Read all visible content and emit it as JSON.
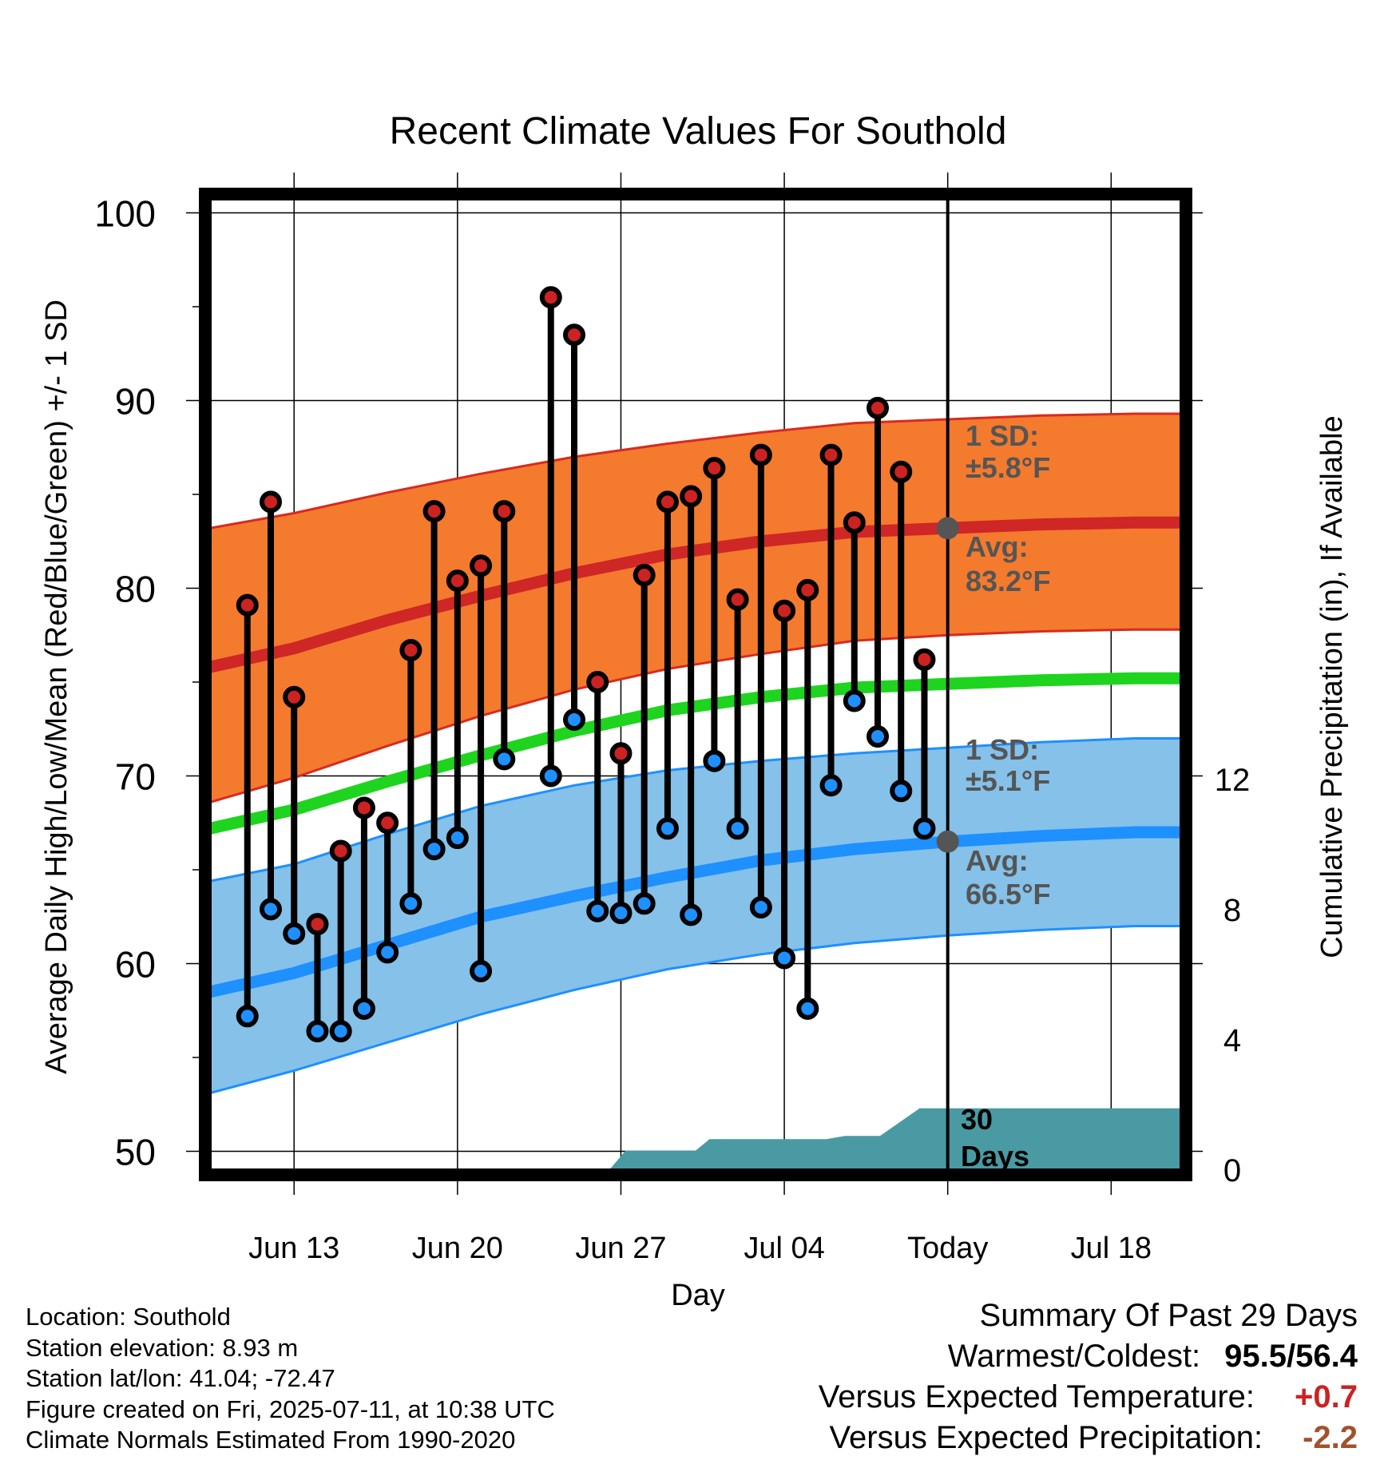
{
  "chart_data": {
    "type": "line",
    "title": "Recent Climate Values For Southold",
    "xlabel": "Day",
    "ylabel": "Average Daily High/Low/Mean (Red/Blue/Green) +/- 1 SD",
    "y2label": "Cumulative Precipitation (in), If Available",
    "ylim": [
      49,
      101
    ],
    "y2lim": [
      0,
      30
    ],
    "xlim": [
      -31.6,
      10
    ],
    "x_ticks": [
      {
        "x": -28,
        "label": "Jun 13"
      },
      {
        "x": -21,
        "label": "Jun 20"
      },
      {
        "x": -14,
        "label": "Jun 27"
      },
      {
        "x": -7,
        "label": "Jul 04"
      },
      {
        "x": 0,
        "label": "Today"
      },
      {
        "x": 7,
        "label": "Jul 18"
      }
    ],
    "y_ticks": [
      50,
      60,
      70,
      80,
      90,
      100
    ],
    "y2_ticks": [
      0,
      4,
      8,
      12
    ],
    "today_x": 0,
    "grid": true,
    "normals": {
      "x": [
        -31.6,
        -28,
        -24,
        -20,
        -16,
        -12,
        -8,
        -4,
        0,
        4,
        8,
        10
      ],
      "high_upper": [
        83.2,
        84.0,
        85.1,
        86.1,
        87.0,
        87.7,
        88.3,
        88.8,
        89.0,
        89.2,
        89.3,
        89.3
      ],
      "high_avg": [
        75.8,
        76.8,
        78.3,
        79.6,
        80.8,
        81.8,
        82.5,
        83.0,
        83.2,
        83.4,
        83.5,
        83.5
      ],
      "high_lower": [
        68.6,
        69.9,
        71.6,
        73.2,
        74.6,
        75.7,
        76.5,
        77.2,
        77.5,
        77.7,
        77.8,
        77.8
      ],
      "mean_avg": [
        67.2,
        68.2,
        69.7,
        71.1,
        72.4,
        73.5,
        74.2,
        74.7,
        74.9,
        75.1,
        75.2,
        75.2
      ],
      "low_upper": [
        64.4,
        65.3,
        66.9,
        68.4,
        69.5,
        70.3,
        70.8,
        71.2,
        71.5,
        71.8,
        72.0,
        72.0
      ],
      "low_avg": [
        58.5,
        59.5,
        61.0,
        62.5,
        63.6,
        64.6,
        65.5,
        66.1,
        66.5,
        66.8,
        67.0,
        67.0
      ],
      "low_lower": [
        53.1,
        54.3,
        55.8,
        57.3,
        58.6,
        59.7,
        60.5,
        61.1,
        61.5,
        61.8,
        62.0,
        62.0
      ]
    },
    "series": [
      {
        "name": "High",
        "color": "#cc2222",
        "x": [
          -30,
          -29,
          -28,
          -27,
          -26,
          -25,
          -24,
          -23,
          -22,
          -21,
          -20,
          -19,
          -17,
          -16,
          -15,
          -14,
          -13,
          -12,
          -11,
          -10,
          -9,
          -8,
          -7,
          -6,
          -5,
          -4,
          -3,
          -2,
          -1
        ],
        "values": [
          79.1,
          84.6,
          74.2,
          62.1,
          66.0,
          68.3,
          67.5,
          76.7,
          84.1,
          80.4,
          81.2,
          84.1,
          95.5,
          93.5,
          75.0,
          71.2,
          80.7,
          84.6,
          84.9,
          86.4,
          79.4,
          87.1,
          78.8,
          79.9,
          87.1,
          83.5,
          89.6,
          86.2,
          76.2
        ]
      },
      {
        "name": "Low",
        "color": "#1e90ff",
        "x": [
          -30,
          -29,
          -28,
          -27,
          -26,
          -25,
          -24,
          -23,
          -22,
          -21,
          -20,
          -19,
          -17,
          -16,
          -15,
          -14,
          -13,
          -12,
          -11,
          -10,
          -9,
          -8,
          -7,
          -6,
          -5,
          -4,
          -3,
          -2,
          -1
        ],
        "values": [
          57.2,
          62.9,
          61.6,
          56.4,
          56.4,
          57.6,
          60.6,
          63.2,
          66.1,
          66.7,
          59.6,
          70.9,
          70.0,
          73.0,
          62.8,
          62.7,
          63.2,
          67.2,
          62.6,
          70.8,
          67.2,
          63.0,
          60.3,
          57.6,
          69.5,
          74.0,
          72.1,
          69.2,
          67.2
        ]
      }
    ],
    "precip": {
      "x": [
        -31.6,
        -14.5,
        -13.8,
        -10.8,
        -10.2,
        -5.2,
        -4.4,
        -2.9,
        -1.2,
        10
      ],
      "values": [
        0.0,
        0.0,
        0.6,
        0.6,
        0.95,
        0.95,
        1.05,
        1.05,
        1.9,
        1.9
      ]
    },
    "annotations": {
      "high_sd_label": "1 SD:",
      "high_sd_value": "±5.8°F",
      "high_avg_label": "Avg:",
      "high_avg_value": "83.2°F",
      "low_sd_label": "1 SD:",
      "low_sd_value": "±5.1°F",
      "low_avg_label": "Avg:",
      "low_avg_value": "66.5°F",
      "days_line1": "30",
      "days_line2": "Days"
    },
    "colors": {
      "high_band": "#f47a2e",
      "high_line": "#cf2626",
      "mean_line": "#1ed41e",
      "low_band": "#85c1e8",
      "low_line": "#1e90ff",
      "precip_fill": "#4a9aa3",
      "marker_today": "#555555",
      "annotation_text": "#555555"
    }
  },
  "footer": {
    "location": "Location: Southold",
    "elevation": "Station elevation: 8.93 m",
    "latlon": "Station lat/lon: 41.04; -72.47",
    "created": "Figure created on Fri, 2025-07-11, at 10:38 UTC",
    "normals": "Climate Normals Estimated From 1990-2020"
  },
  "summary": {
    "title": "Summary Of Past 29 Days",
    "warm_cold_label": "Warmest/Coldest:",
    "warm_cold_value": "95.5/56.4",
    "temp_label": "Versus Expected Temperature:",
    "temp_value": "+0.7",
    "temp_color": "#cc2222",
    "precip_label": "Versus Expected Precipitation:",
    "precip_value": "-2.2",
    "precip_color": "#a0522d"
  }
}
